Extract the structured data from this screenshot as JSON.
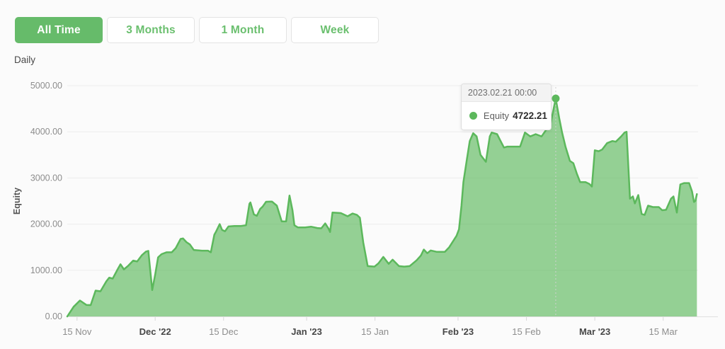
{
  "toolbar": {
    "buttons": [
      {
        "label": "All Time",
        "active": true
      },
      {
        "label": "3 Months",
        "active": false
      },
      {
        "label": "1 Month",
        "active": false
      },
      {
        "label": "Week",
        "active": false
      }
    ]
  },
  "period_label": "Daily",
  "tooltip": {
    "date": "2023.02.21 00:00",
    "series_label": "Equity",
    "value": "4722.21"
  },
  "chart_data": {
    "type": "area",
    "series_name": "Equity",
    "ylabel": "Equity",
    "ylim": [
      0,
      5000
    ],
    "grid": true,
    "y_ticks": [
      {
        "value": 5000,
        "label": "5000.00"
      },
      {
        "value": 4000,
        "label": "4000.00"
      },
      {
        "value": 3000,
        "label": "3000.00"
      },
      {
        "value": 2000,
        "label": "2000.00"
      },
      {
        "value": 1000,
        "label": "1000.00"
      },
      {
        "value": 0,
        "label": "0.00"
      }
    ],
    "x_axis": {
      "start_date": "2022-11-13",
      "unit": "days_since_start",
      "ticks": [
        {
          "label": "15 Nov",
          "t": 2,
          "bold": false
        },
        {
          "label": "Dec '22",
          "t": 18,
          "bold": true
        },
        {
          "label": "15 Dec",
          "t": 32,
          "bold": false
        },
        {
          "label": "Jan '23",
          "t": 49,
          "bold": true
        },
        {
          "label": "15 Jan",
          "t": 63,
          "bold": false
        },
        {
          "label": "Feb '23",
          "t": 80,
          "bold": true
        },
        {
          "label": "15 Feb",
          "t": 94,
          "bold": false
        },
        {
          "label": "Mar '23",
          "t": 108,
          "bold": true
        },
        {
          "label": "15 Mar",
          "t": 122,
          "bold": false
        }
      ]
    },
    "marked_point": {
      "t": 100,
      "date": "2023.02.21 00:00",
      "value": 4722.21
    },
    "points": [
      [
        0,
        0
      ],
      [
        1.3,
        210
      ],
      [
        2.6,
        345
      ],
      [
        3.9,
        250
      ],
      [
        4.8,
        245
      ],
      [
        5.8,
        560
      ],
      [
        6.8,
        545
      ],
      [
        8,
        760
      ],
      [
        8.6,
        840
      ],
      [
        9.3,
        820
      ],
      [
        10.2,
        1000
      ],
      [
        10.9,
        1130
      ],
      [
        11.6,
        1020
      ],
      [
        12.5,
        1100
      ],
      [
        13.5,
        1210
      ],
      [
        14.3,
        1190
      ],
      [
        15.3,
        1330
      ],
      [
        16.1,
        1405
      ],
      [
        16.6,
        1420
      ],
      [
        17.4,
        570
      ],
      [
        18,
        910
      ],
      [
        18.6,
        1280
      ],
      [
        19.3,
        1350
      ],
      [
        20.3,
        1390
      ],
      [
        21.4,
        1390
      ],
      [
        22.2,
        1480
      ],
      [
        23.2,
        1680
      ],
      [
        23.7,
        1690
      ],
      [
        24.4,
        1610
      ],
      [
        25.1,
        1560
      ],
      [
        25.9,
        1440
      ],
      [
        27.6,
        1425
      ],
      [
        28.8,
        1425
      ],
      [
        29.4,
        1390
      ],
      [
        30.1,
        1770
      ],
      [
        30.5,
        1845
      ],
      [
        31.2,
        2000
      ],
      [
        31.7,
        1875
      ],
      [
        32.3,
        1845
      ],
      [
        33,
        1950
      ],
      [
        34.2,
        1960
      ],
      [
        35.6,
        1960
      ],
      [
        36.6,
        1975
      ],
      [
        37.3,
        2440
      ],
      [
        37.5,
        2470
      ],
      [
        38.2,
        2210
      ],
      [
        38.8,
        2180
      ],
      [
        39.5,
        2330
      ],
      [
        40,
        2380
      ],
      [
        40.7,
        2485
      ],
      [
        41.9,
        2490
      ],
      [
        42.9,
        2400
      ],
      [
        43.9,
        2060
      ],
      [
        44.8,
        2060
      ],
      [
        45.5,
        2620
      ],
      [
        46.1,
        2300
      ],
      [
        46.5,
        1975
      ],
      [
        47.2,
        1930
      ],
      [
        48.7,
        1930
      ],
      [
        49.9,
        1945
      ],
      [
        51.2,
        1915
      ],
      [
        52,
        1910
      ],
      [
        52.8,
        2015
      ],
      [
        53.5,
        1900
      ],
      [
        53.8,
        1830
      ],
      [
        54.3,
        2250
      ],
      [
        56,
        2240
      ],
      [
        57.4,
        2170
      ],
      [
        58.4,
        2230
      ],
      [
        59.3,
        2200
      ],
      [
        59.9,
        2140
      ],
      [
        60.6,
        1600
      ],
      [
        61.5,
        1090
      ],
      [
        62.9,
        1080
      ],
      [
        63.7,
        1150
      ],
      [
        64.7,
        1290
      ],
      [
        65.8,
        1140
      ],
      [
        66.6,
        1230
      ],
      [
        67.9,
        1090
      ],
      [
        69,
        1080
      ],
      [
        70.1,
        1090
      ],
      [
        71.5,
        1215
      ],
      [
        72.4,
        1320
      ],
      [
        73,
        1450
      ],
      [
        73.7,
        1370
      ],
      [
        74.4,
        1430
      ],
      [
        75.6,
        1400
      ],
      [
        77.3,
        1400
      ],
      [
        78.2,
        1500
      ],
      [
        79.7,
        1750
      ],
      [
        80.2,
        1890
      ],
      [
        80.7,
        2400
      ],
      [
        81.1,
        2910
      ],
      [
        81.8,
        3400
      ],
      [
        82.4,
        3800
      ],
      [
        83.1,
        3970
      ],
      [
        83.8,
        3900
      ],
      [
        84.6,
        3500
      ],
      [
        85.7,
        3350
      ],
      [
        86.5,
        3900
      ],
      [
        86.9,
        3985
      ],
      [
        88,
        3950
      ],
      [
        88.7,
        3800
      ],
      [
        89.4,
        3660
      ],
      [
        90.1,
        3680
      ],
      [
        91.6,
        3680
      ],
      [
        92.7,
        3680
      ],
      [
        93.7,
        3985
      ],
      [
        94.8,
        3900
      ],
      [
        95.9,
        3950
      ],
      [
        97.1,
        3900
      ],
      [
        98.1,
        4050
      ],
      [
        99,
        4200
      ],
      [
        100,
        4722.21
      ],
      [
        100.7,
        4300
      ],
      [
        101.3,
        3985
      ],
      [
        102,
        3680
      ],
      [
        102.9,
        3370
      ],
      [
        103.6,
        3320
      ],
      [
        104.3,
        3100
      ],
      [
        105,
        2910
      ],
      [
        106.1,
        2910
      ],
      [
        106.9,
        2870
      ],
      [
        107.4,
        2815
      ],
      [
        108,
        3600
      ],
      [
        108.8,
        3580
      ],
      [
        109.5,
        3615
      ],
      [
        110.5,
        3755
      ],
      [
        111.6,
        3800
      ],
      [
        112.3,
        3785
      ],
      [
        113.4,
        3900
      ],
      [
        114.1,
        3985
      ],
      [
        114.5,
        4000
      ],
      [
        115.2,
        2550
      ],
      [
        115.8,
        2600
      ],
      [
        116.2,
        2450
      ],
      [
        116.9,
        2630
      ],
      [
        117.6,
        2220
      ],
      [
        118.2,
        2200
      ],
      [
        118.9,
        2400
      ],
      [
        119.9,
        2370
      ],
      [
        121.1,
        2370
      ],
      [
        121.8,
        2300
      ],
      [
        122.6,
        2310
      ],
      [
        123.6,
        2550
      ],
      [
        124.1,
        2600
      ],
      [
        124.8,
        2250
      ],
      [
        125.5,
        2860
      ],
      [
        126.3,
        2890
      ],
      [
        127.3,
        2890
      ],
      [
        127.9,
        2710
      ],
      [
        128.3,
        2480
      ],
      [
        128.6,
        2505
      ],
      [
        128.9,
        2650
      ]
    ],
    "colors": {
      "accent": "#66bb6a",
      "line": "#5cb85c",
      "fill": "#5cb85c",
      "grid": "#ececec",
      "axis": "#e0e0e0",
      "tick": "#d9d9d9",
      "tick_label": "#8d8d8d",
      "tick_label_bold": "#474747",
      "axis_title": "#555555",
      "marker_line": "#cfcfcf"
    }
  }
}
